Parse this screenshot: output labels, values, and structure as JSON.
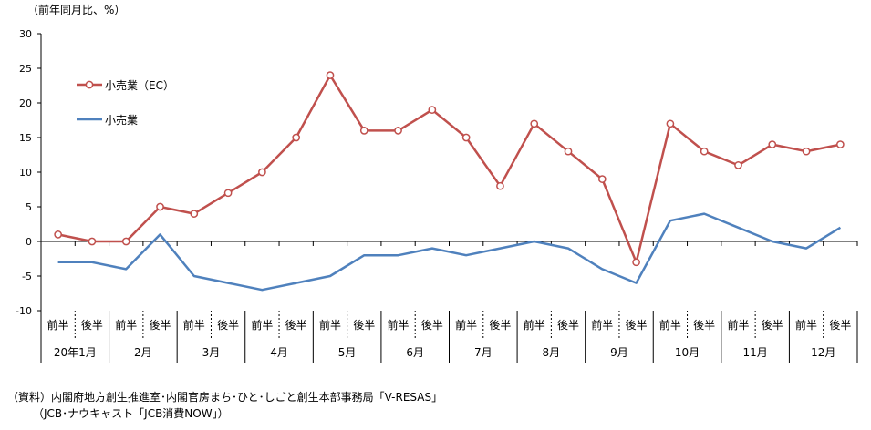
{
  "unit_label": "（前年同月比、%）",
  "source": {
    "line1": "（資料）内閣府地方創生推進室･内閣官房まち･ひと･しごと創生本部事務局「V-RESAS」",
    "line2": "（JCB･ナウキャスト「JCB消費NOW」）"
  },
  "chart_data": {
    "type": "line",
    "title": "",
    "xlabel": "",
    "ylabel": "（前年同月比、%）",
    "ylim": [
      -10,
      30
    ],
    "yticks": [
      30,
      25,
      20,
      15,
      10,
      5,
      0,
      -5,
      -10
    ],
    "grid": false,
    "legend_position": "upper-left",
    "x": [
      "前半",
      "後半",
      "前半",
      "後半",
      "前半",
      "後半",
      "前半",
      "後半",
      "前半",
      "後半",
      "前半",
      "後半",
      "前半",
      "後半",
      "前半",
      "後半",
      "前半",
      "後半",
      "前半",
      "後半",
      "前半",
      "後半",
      "前半",
      "後半"
    ],
    "month_groups": [
      "20年1月",
      "2月",
      "3月",
      "4月",
      "5月",
      "6月",
      "7月",
      "8月",
      "9月",
      "10月",
      "11月",
      "12月"
    ],
    "series": [
      {
        "name": "小売業（EC）",
        "color": "#c0504d",
        "marker": "circle",
        "values": [
          1,
          0,
          0,
          5,
          4,
          7,
          10,
          15,
          24,
          16,
          16,
          19,
          15,
          8,
          17,
          13,
          9,
          -3,
          17,
          13,
          11,
          14,
          13,
          14
        ]
      },
      {
        "name": "小売業",
        "color": "#4f81bd",
        "marker": "none",
        "values": [
          -3,
          -3,
          -4,
          1,
          -5,
          -6,
          -7,
          -6,
          -5,
          -2,
          -2,
          -1,
          -2,
          -1,
          0,
          -1,
          -4,
          -6,
          3,
          4,
          2,
          0,
          -1,
          2
        ]
      }
    ]
  }
}
